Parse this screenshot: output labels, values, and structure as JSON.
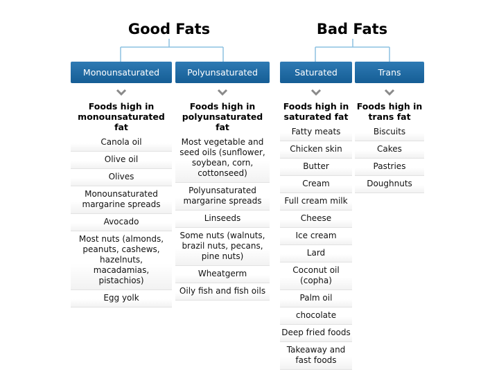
{
  "groups": [
    {
      "title": "Good Fats"
    },
    {
      "title": "Bad Fats"
    }
  ],
  "columns": [
    {
      "header": "Monounsaturated",
      "subheader": "Foods high in monounsaturated fat",
      "items": [
        "Canola oil",
        "Olive oil",
        "Olives",
        "Monounsaturated margarine spreads",
        "Avocado",
        "Most nuts (almonds, peanuts, cashews, hazelnuts, macadamias, pistachios)",
        "Egg yolk"
      ]
    },
    {
      "header": "Polyunsaturated",
      "subheader": "Foods high in polyunsaturated fat",
      "items": [
        "Most vegetable and seed oils (sunflower, soybean, corn, cottonseed)",
        "Polyunsaturated margarine spreads",
        "Linseeds",
        "Some nuts (walnuts, brazil nuts, pecans, pine nuts)",
        "Wheatgerm",
        "Oily fish and fish oils"
      ]
    },
    {
      "header": "Saturated",
      "subheader": "Foods high in saturated fat",
      "items": [
        "Fatty meats",
        "Chicken skin",
        "Butter",
        "Cream",
        "Full cream milk",
        "Cheese",
        "Ice cream",
        "Lard",
        "Coconut oil (copha)",
        "Palm oil",
        "chocolate",
        "Deep fried foods",
        "Takeaway and fast foods"
      ]
    },
    {
      "header": "Trans",
      "subheader": "Foods high in trans fat",
      "items": [
        "Biscuits",
        "Cakes",
        "Pastries",
        "Doughnuts"
      ]
    }
  ],
  "colors": {
    "header_bg": "#1f6ca8",
    "connector": "#8cc0e0",
    "chevron": "#8a8a8a",
    "row_border": "#e2e2e2"
  }
}
